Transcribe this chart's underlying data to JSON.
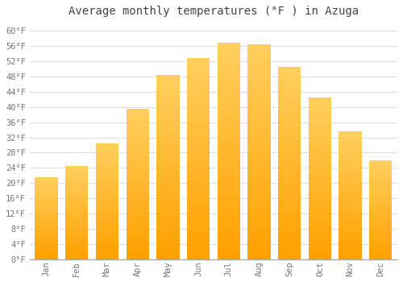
{
  "title": "Average monthly temperatures (°F ) in Azuga",
  "months": [
    "Jan",
    "Feb",
    "Mar",
    "Apr",
    "May",
    "Jun",
    "Jul",
    "Aug",
    "Sep",
    "Oct",
    "Nov",
    "Dec"
  ],
  "values": [
    21.5,
    24.5,
    30.5,
    39.5,
    48.5,
    53.0,
    57.0,
    56.5,
    50.5,
    42.5,
    33.5,
    26.0
  ],
  "bar_color": "#FFA500",
  "bar_color_light": "#FFD060",
  "background_color": "#ffffff",
  "grid_color": "#dddddd",
  "text_color": "#777777",
  "title_color": "#444444",
  "ylim": [
    0,
    62
  ],
  "yticks": [
    0,
    4,
    8,
    12,
    16,
    20,
    24,
    28,
    32,
    36,
    40,
    44,
    48,
    52,
    56,
    60
  ],
  "title_fontsize": 10,
  "tick_fontsize": 7.5,
  "font_family": "monospace"
}
